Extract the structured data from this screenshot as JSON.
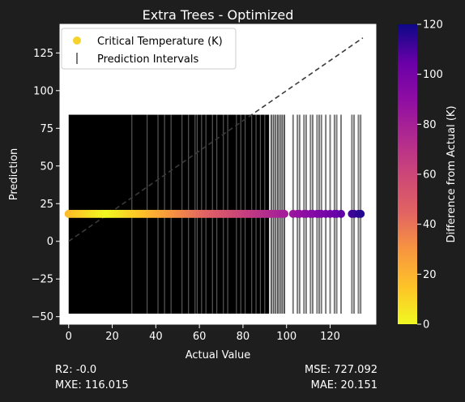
{
  "chart_data": {
    "type": "scatter",
    "title": "Extra Trees - Optimized",
    "xlabel": "Actual Value",
    "ylabel": "Prediction",
    "xlim": [
      -4,
      141
    ],
    "ylim": [
      -55,
      144
    ],
    "x_ticks": [
      0,
      20,
      40,
      60,
      80,
      100,
      120
    ],
    "y_ticks": [
      -50,
      -25,
      0,
      25,
      50,
      75,
      100,
      125
    ],
    "grid": false,
    "legend": {
      "position": "top-left",
      "entries": [
        {
          "label": "Critical Temperature (K)",
          "marker": "dot",
          "color": "#f6d22c"
        },
        {
          "label": "Prediction Intervals",
          "marker": "vline",
          "color": "#7a7a7a"
        }
      ]
    },
    "prediction_constant": 18.2,
    "interval": {
      "lower": -48,
      "upper": 84
    },
    "reference_line": {
      "style": "dashed",
      "color": "#3a3a3a",
      "from": [
        0,
        0
      ],
      "to": [
        135,
        135
      ]
    },
    "sparse_actuals": [
      93,
      94,
      95,
      96,
      97,
      98,
      99,
      103,
      105,
      106,
      108,
      109,
      111,
      112,
      114,
      115,
      116,
      118,
      120,
      122,
      123,
      125,
      130,
      131,
      133,
      134
    ],
    "dense_range": [
      0,
      92
    ],
    "gray_streak_actuals": [
      29,
      36,
      41,
      44,
      47,
      52,
      55,
      58,
      59,
      61,
      63,
      66,
      68,
      71,
      73,
      77,
      79,
      81,
      84,
      86,
      88,
      90
    ],
    "colorbar": {
      "label": "Difference from Actual (K)",
      "min": 0,
      "max": 120,
      "ticks": [
        0,
        20,
        40,
        60,
        80,
        100,
        120
      ],
      "colormap": "plasma_r"
    }
  },
  "metrics": {
    "r2": "R2: -0.0",
    "mxe": "MXE: 116.015",
    "mse": "MSE: 727.092",
    "mae": "MAE: 20.151"
  }
}
